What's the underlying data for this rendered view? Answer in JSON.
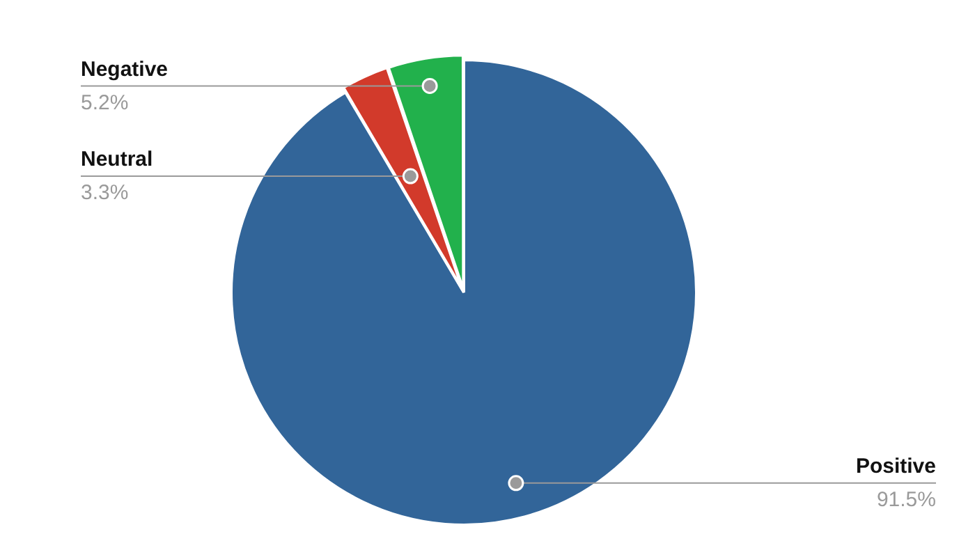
{
  "chart_data": {
    "type": "pie",
    "categories": [
      "Positive",
      "Neutral",
      "Negative"
    ],
    "values": [
      91.5,
      3.3,
      5.2
    ],
    "colors": [
      "#326599",
      "#d23a2b",
      "#22b14c"
    ],
    "value_labels": [
      "91.5%",
      "3.3%",
      "5.2%"
    ],
    "legend": false
  }
}
